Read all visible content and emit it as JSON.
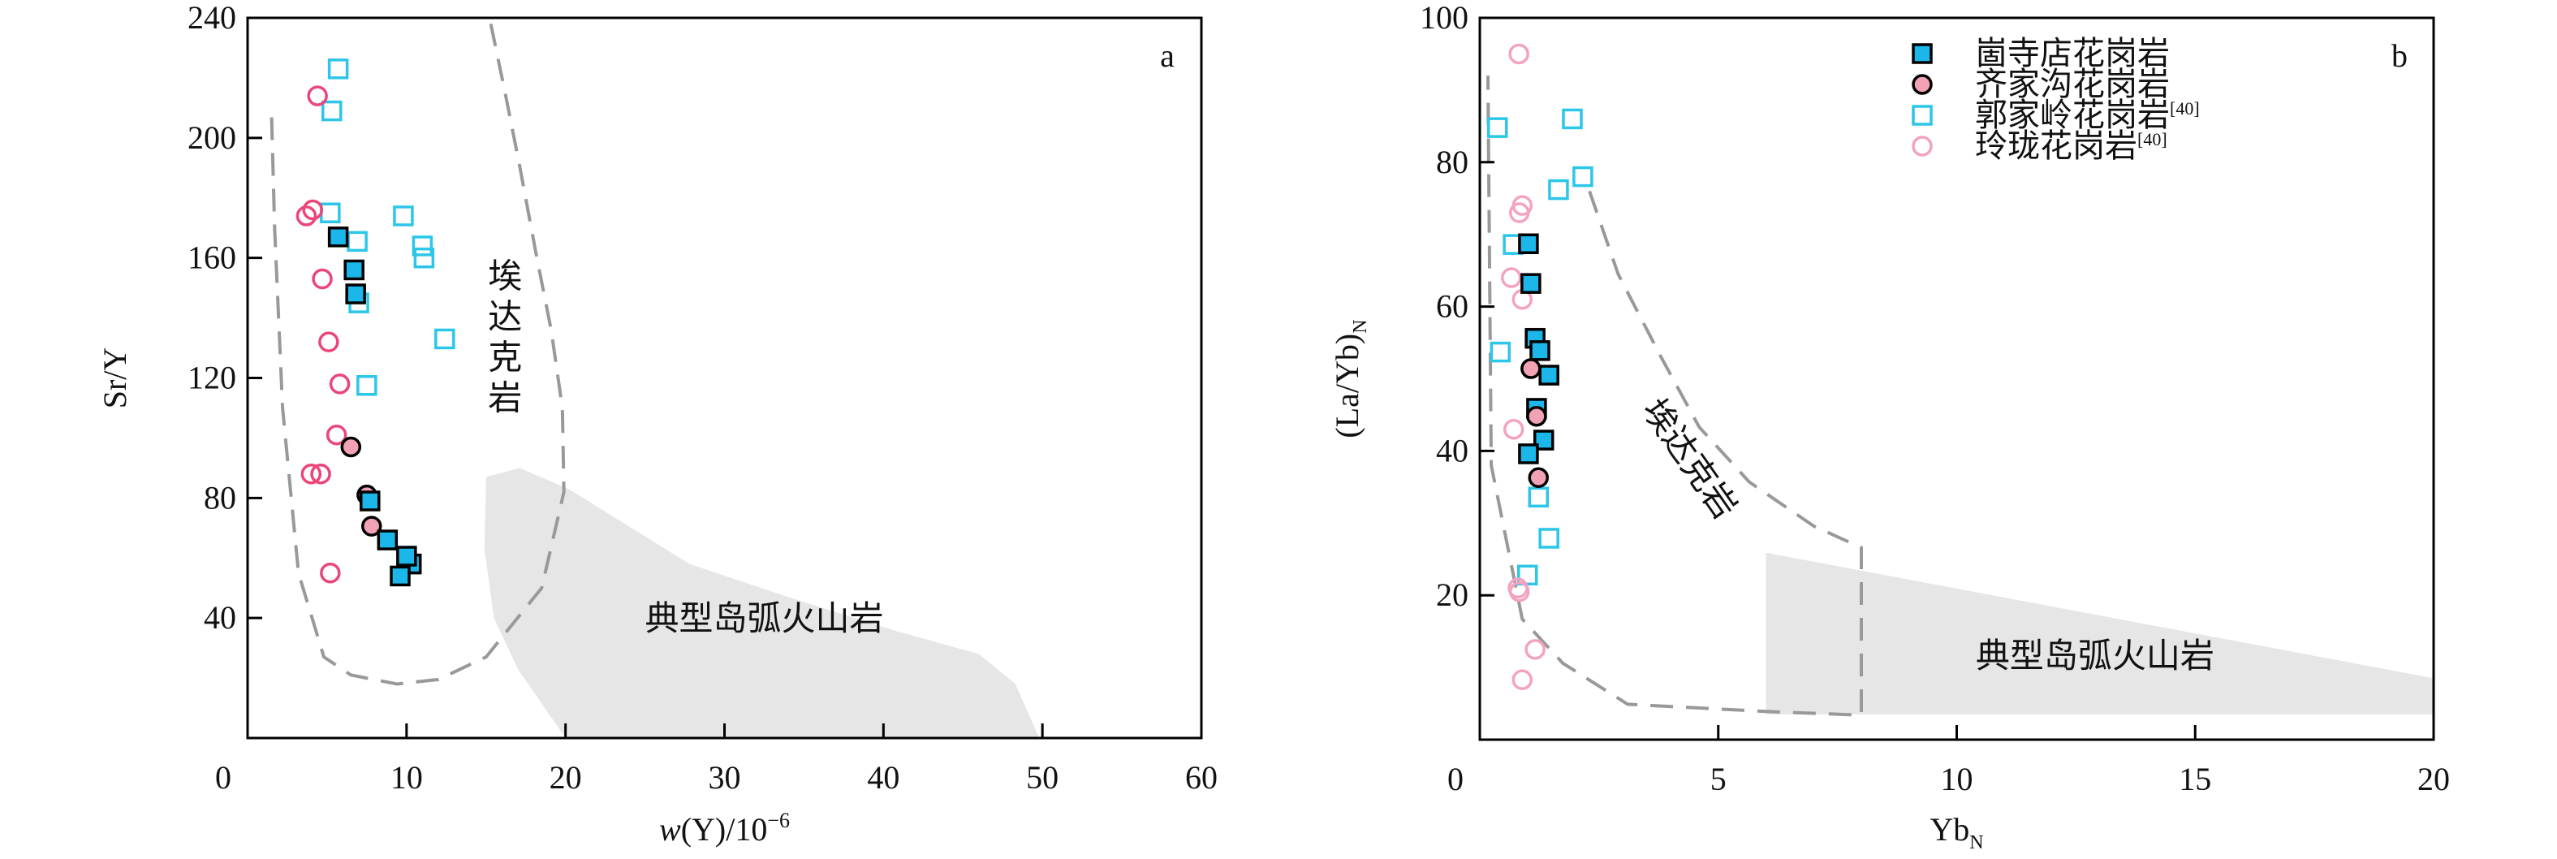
{
  "chart_data": [
    {
      "type": "scatter",
      "panel_label": "a",
      "xlabel_italic": "w",
      "xlabel_rest": "(Y)/10",
      "xlabel_sup": "−6",
      "ylabel": "Sr/Y",
      "xlim": [
        0,
        60
      ],
      "ylim": [
        0,
        240
      ],
      "xticks": [
        0,
        10,
        20,
        30,
        40,
        50,
        60
      ],
      "yticks": [
        40,
        80,
        120,
        160,
        200,
        240
      ],
      "region_labels": {
        "adakite": "埃达克岩",
        "arc": "典型岛弧火山岩"
      },
      "adakite_field": [
        [
          15.3,
          238
        ],
        [
          16.2,
          215
        ],
        [
          17.1,
          191
        ],
        [
          18.2,
          160
        ],
        [
          19.1,
          136
        ],
        [
          19.8,
          110
        ],
        [
          19.9,
          82
        ],
        [
          18.5,
          50
        ],
        [
          15,
          27
        ],
        [
          12,
          19.5
        ],
        [
          9.4,
          18
        ],
        [
          6.5,
          21
        ],
        [
          4.8,
          27
        ],
        [
          3.2,
          55
        ],
        [
          2.2,
          110
        ],
        [
          1.7,
          170
        ],
        [
          1.5,
          209
        ]
      ],
      "arc_field": [
        [
          15,
          87
        ],
        [
          17.1,
          90
        ],
        [
          20.2,
          83
        ],
        [
          27.8,
          58
        ],
        [
          34,
          47
        ],
        [
          40.6,
          36
        ],
        [
          46,
          28
        ],
        [
          48.3,
          18
        ],
        [
          49.8,
          0
        ],
        [
          20,
          0
        ],
        [
          17,
          23
        ],
        [
          15.5,
          40
        ],
        [
          14.9,
          63
        ]
      ],
      "series": [
        {
          "name": "郭家岭花岗岩",
          "marker": "open-square",
          "points": [
            [
              5.7,
              223
            ],
            [
              5.3,
              209
            ],
            [
              5.2,
              175
            ],
            [
              9.8,
              174
            ],
            [
              6.9,
              165.5
            ],
            [
              11,
              164
            ],
            [
              11.1,
              160
            ],
            [
              7.0,
              145
            ],
            [
              12.4,
              133
            ],
            [
              7.5,
              117.5
            ]
          ]
        },
        {
          "name": "玲珑花岗岩",
          "marker": "open-circle",
          "points": [
            [
              4.4,
              214
            ],
            [
              4.1,
              176
            ],
            [
              3.7,
              174
            ],
            [
              4.7,
              153
            ],
            [
              5.1,
              132
            ],
            [
              5.8,
              118
            ],
            [
              5.6,
              101
            ],
            [
              4.0,
              88
            ],
            [
              4.6,
              88
            ],
            [
              5.2,
              55
            ]
          ]
        },
        {
          "name": "齐家沟花岗岩",
          "marker": "filled-circle",
          "points": [
            [
              6.5,
              97
            ],
            [
              7.5,
              81
            ],
            [
              7.8,
              70.6
            ]
          ]
        },
        {
          "name": "崮寺店花岗岩",
          "marker": "filled-square",
          "points": [
            [
              5.7,
              167
            ],
            [
              6.7,
              156
            ],
            [
              6.8,
              148
            ],
            [
              7.7,
              79
            ],
            [
              8.8,
              66
            ],
            [
              10.3,
              58
            ],
            [
              9.6,
              54
            ],
            [
              10,
              60.6
            ]
          ]
        }
      ]
    },
    {
      "type": "scatter",
      "panel_label": "b",
      "xlabel": "Yb",
      "xlabel_sub": "N",
      "ylabel": "(La/Yb)",
      "ylabel_sub": "N",
      "xlim": [
        0,
        20
      ],
      "ylim": [
        0,
        100
      ],
      "xticks": [
        0,
        5,
        10,
        15,
        20
      ],
      "yticks": [
        20,
        40,
        60,
        80,
        100
      ],
      "region_labels": {
        "adakite": "埃达克岩",
        "arc": "典型岛弧火山岩"
      },
      "adakite_field": [
        [
          2.3,
          76
        ],
        [
          2.9,
          64.5
        ],
        [
          3.8,
          53
        ],
        [
          4.6,
          43.3
        ],
        [
          5.65,
          35.7
        ],
        [
          7.0,
          29.6
        ],
        [
          8,
          26.6
        ],
        [
          8,
          3.4
        ],
        [
          6,
          3.9
        ],
        [
          3.1,
          4.9
        ],
        [
          1.74,
          10.6
        ],
        [
          0.89,
          16.7
        ],
        [
          0.24,
          38
        ],
        [
          0.17,
          92
        ]
      ],
      "arc_field": [
        [
          6,
          25.9
        ],
        [
          20,
          8.5
        ],
        [
          20,
          3.5
        ],
        [
          6,
          3.5
        ]
      ],
      "series": [
        {
          "name": "郭家岭花岗岩",
          "marker": "open-square",
          "points": [
            [
              0.37,
              84.8
            ],
            [
              1.94,
              86
            ],
            [
              2.16,
              78
            ],
            [
              1.65,
              76.2
            ],
            [
              0.7,
              68.6
            ],
            [
              0.43,
              53.7
            ],
            [
              1.23,
              33.6
            ],
            [
              1.45,
              27.9
            ],
            [
              1.0,
              22.8
            ]
          ]
        },
        {
          "name": "玲珑花岗岩",
          "marker": "open-circle",
          "points": [
            [
              0.82,
              95
            ],
            [
              0.89,
              74
            ],
            [
              0.83,
              73
            ],
            [
              0.66,
              64
            ],
            [
              0.89,
              61
            ],
            [
              0.71,
              43
            ],
            [
              0.8,
              21
            ],
            [
              0.83,
              20.5
            ],
            [
              1.16,
              12.5
            ],
            [
              0.89,
              8.3
            ]
          ]
        },
        {
          "name": "崮寺店花岗岩",
          "marker": "filled-square",
          "points": [
            [
              1.02,
              68.7
            ],
            [
              1.07,
              63.2
            ],
            [
              1.16,
              55.6
            ],
            [
              1.26,
              53.9
            ],
            [
              1.45,
              50.5
            ],
            [
              1.19,
              45.9
            ],
            [
              1.34,
              41.5
            ],
            [
              1.02,
              39.6
            ]
          ]
        },
        {
          "name": "齐家沟花岗岩",
          "marker": "filled-circle",
          "points": [
            [
              1.07,
              51.4
            ],
            [
              1.19,
              44.8
            ],
            [
              1.23,
              36.3
            ]
          ]
        }
      ],
      "legend": {
        "placement": "top-right",
        "entries": [
          {
            "label": "崮寺店花岗岩",
            "marker": "filled-square",
            "ref": ""
          },
          {
            "label": "齐家沟花岗岩",
            "marker": "filled-circle",
            "ref": ""
          },
          {
            "label": "郭家岭花岗岩",
            "marker": "open-square",
            "ref": "[40]"
          },
          {
            "label": "玲珑花岗岩",
            "marker": "open-circle",
            "ref": "[40]"
          }
        ]
      }
    }
  ],
  "colors": {
    "open_square": "#2cc6e8",
    "filled_square": "#1bb6ea",
    "open_circle_a": "#ea4679",
    "open_circle_b": "#f4a3bf",
    "filled_circle": "#f3a2b6",
    "field_fill": "#e6e6e6",
    "dash": "#999999"
  }
}
